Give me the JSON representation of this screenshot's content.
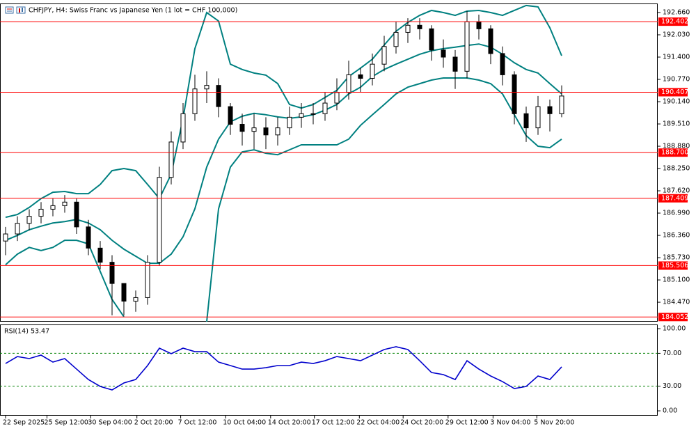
{
  "chart_data": [
    {
      "type": "candlestick",
      "title": "CHFJPY, H4:  Swiss Franc vs Japanese Yen (1 lot = CHF 100,000)",
      "open": [
        186.2,
        186.4,
        186.7,
        186.9,
        187.1,
        187.2,
        187.3,
        186.6,
        186.0,
        185.6,
        185.0,
        184.5,
        184.6,
        185.6,
        188.0,
        189.0,
        189.8,
        190.5,
        190.6,
        190.0,
        189.5,
        189.3,
        189.4,
        189.2,
        189.4,
        189.7,
        189.8,
        189.8,
        190.1,
        190.4,
        190.9,
        190.8,
        191.2,
        191.7,
        192.1,
        192.3,
        192.2,
        191.6,
        191.4,
        191.0,
        192.4,
        192.2,
        191.5,
        190.9,
        189.8,
        189.4,
        190.0,
        189.8
      ],
      "high": [
        186.6,
        186.9,
        187.1,
        187.3,
        187.4,
        187.5,
        187.4,
        186.8,
        186.2,
        185.8,
        185.0,
        184.8,
        185.8,
        188.3,
        189.3,
        190.1,
        190.9,
        191.0,
        190.8,
        190.1,
        189.8,
        189.8,
        189.7,
        189.7,
        190.0,
        190.1,
        190.1,
        190.4,
        190.8,
        191.3,
        191.1,
        191.5,
        192.0,
        192.4,
        192.5,
        192.5,
        192.3,
        191.9,
        191.6,
        192.7,
        192.6,
        192.3,
        191.7,
        191.0,
        190.0,
        190.3,
        190.2,
        190.6
      ],
      "low": [
        185.8,
        186.2,
        186.5,
        186.7,
        186.9,
        187.0,
        186.4,
        185.8,
        185.4,
        184.1,
        184.1,
        184.2,
        184.4,
        185.5,
        187.8,
        188.8,
        189.6,
        190.1,
        189.7,
        189.2,
        188.9,
        188.8,
        188.8,
        188.9,
        189.2,
        189.4,
        189.5,
        189.6,
        189.9,
        190.2,
        190.4,
        190.6,
        191.0,
        191.5,
        191.8,
        191.9,
        191.3,
        191.1,
        190.5,
        190.8,
        191.9,
        191.2,
        190.6,
        189.5,
        189.0,
        189.2,
        189.3,
        189.7
      ],
      "close": [
        186.4,
        186.7,
        186.9,
        187.1,
        187.2,
        187.3,
        186.6,
        186.0,
        185.6,
        185.0,
        184.5,
        184.6,
        185.6,
        188.0,
        189.0,
        189.8,
        190.5,
        190.6,
        190.0,
        189.5,
        189.3,
        189.4,
        189.2,
        189.4,
        189.7,
        189.8,
        189.8,
        190.1,
        190.4,
        190.9,
        190.8,
        191.2,
        191.7,
        192.1,
        192.3,
        192.2,
        191.6,
        191.4,
        191.0,
        192.4,
        192.2,
        191.5,
        190.9,
        189.8,
        189.4,
        190.0,
        189.8,
        190.3
      ],
      "up_color": "#ffffff",
      "down_color": "#000000",
      "outline_color": "#000000",
      "bands": {
        "color": "#008080",
        "upper": [
          186.87,
          186.95,
          187.15,
          187.4,
          187.58,
          187.6,
          187.54,
          187.54,
          187.8,
          188.19,
          188.25,
          188.19,
          187.8,
          187.4,
          188.09,
          189.67,
          191.64,
          192.66,
          192.42,
          191.2,
          191.05,
          190.95,
          190.89,
          190.65,
          190.06,
          189.96,
          190.06,
          190.26,
          190.46,
          190.85,
          191.09,
          191.34,
          191.74,
          192.13,
          192.38,
          192.58,
          192.72,
          192.66,
          192.58,
          192.7,
          192.72,
          192.66,
          192.58,
          192.72,
          192.86,
          192.82,
          192.23,
          191.44
        ],
        "middle": [
          186.22,
          186.36,
          186.52,
          186.62,
          186.71,
          186.75,
          186.81,
          186.71,
          186.52,
          186.22,
          185.97,
          185.77,
          185.57,
          185.57,
          185.83,
          186.32,
          187.11,
          188.29,
          189.08,
          189.57,
          189.73,
          189.81,
          189.77,
          189.71,
          189.67,
          189.71,
          189.77,
          189.9,
          190.06,
          190.36,
          190.55,
          190.85,
          191.05,
          191.2,
          191.34,
          191.48,
          191.58,
          191.64,
          191.68,
          191.73,
          191.77,
          191.68,
          191.48,
          191.24,
          191.05,
          190.95,
          190.65,
          190.36
        ],
        "lower": [
          185.53,
          185.83,
          186.02,
          185.93,
          186.02,
          186.22,
          186.22,
          186.12,
          185.34,
          184.55,
          184.06,
          null,
          null,
          null,
          null,
          null,
          null,
          183.92,
          187.11,
          188.29,
          188.72,
          188.78,
          188.68,
          188.64,
          188.78,
          188.92,
          188.92,
          188.92,
          188.92,
          189.08,
          189.47,
          189.77,
          190.06,
          190.36,
          190.55,
          190.65,
          190.75,
          190.81,
          190.81,
          190.81,
          190.75,
          190.65,
          190.36,
          189.77,
          189.18,
          188.88,
          188.84,
          189.08
        ]
      },
      "levels": [
        192.402,
        190.407,
        {
          "value": 188.7,
          "label": "188.700"
        },
        187.409,
        185.506,
        184.052
      ],
      "level_color": "#ff0000",
      "ylim": [
        183.92,
        192.916
      ],
      "yticks": [
        {
          "value": 192.66,
          "label": "192.660"
        },
        {
          "value": 192.03,
          "label": "192.030"
        },
        {
          "value": 191.4,
          "label": "191.400"
        },
        {
          "value": 190.77,
          "label": "190.770"
        },
        {
          "value": 190.14,
          "label": "190.140"
        },
        {
          "value": 189.51,
          "label": "189.510"
        },
        {
          "value": 188.88,
          "label": "188.880"
        },
        {
          "value": 188.25,
          "label": "188.250"
        },
        {
          "value": 187.62,
          "label": "187.620"
        },
        {
          "value": 186.99,
          "label": "186.990"
        },
        {
          "value": 186.36,
          "label": "186.360"
        },
        {
          "value": 185.73,
          "label": "185.730"
        },
        {
          "value": 185.1,
          "label": "185.100"
        },
        {
          "value": 184.47,
          "label": "184.470"
        }
      ]
    },
    {
      "type": "line",
      "title": "RSI(14) 53.47",
      "values": [
        57.6,
        66.1,
        63.6,
        67.8,
        59.3,
        63.6,
        50.8,
        38.1,
        29.7,
        25.4,
        33.9,
        38.1,
        55.1,
        76.3,
        69.5,
        76.3,
        72.0,
        72.0,
        59.3,
        55.1,
        50.8,
        50.8,
        52.5,
        55.1,
        55.1,
        59.3,
        57.6,
        61.0,
        66.1,
        63.6,
        61.0,
        67.8,
        74.6,
        78.0,
        74.6,
        61.0,
        46.6,
        44.1,
        38.1,
        61.0,
        50.8,
        42.4,
        35.6,
        27.1,
        29.7,
        42.4,
        38.1,
        53.47
      ],
      "color": "#0000cc",
      "levels": [
        70,
        30
      ],
      "level_color": "#008000",
      "ylim": [
        -5.9,
        105.1
      ],
      "yticks": [
        {
          "value": 100,
          "label": "100.00"
        },
        {
          "value": 70,
          "label": "70.00"
        },
        {
          "value": 30,
          "label": "30.00"
        },
        {
          "value": 0,
          "label": "0.00"
        }
      ],
      "xticks": [
        {
          "value": 0,
          "label": "22 Sep 2025"
        },
        {
          "value": 3.5,
          "label": "25 Sep 12:00"
        },
        {
          "value": 7.2,
          "label": "30 Sep 04:00"
        },
        {
          "value": 11.1,
          "label": "2 Oct 20:00"
        },
        {
          "value": 14.8,
          "label": "7 Oct 12:00"
        },
        {
          "value": 18.6,
          "label": "10 Oct 04:00"
        },
        {
          "value": 22.4,
          "label": "14 Oct 20:00"
        },
        {
          "value": 26.1,
          "label": "17 Oct 12:00"
        },
        {
          "value": 29.9,
          "label": "22 Oct 04:00"
        },
        {
          "value": 33.6,
          "label": "24 Oct 20:00"
        },
        {
          "value": 37.4,
          "label": "29 Oct 12:00"
        },
        {
          "value": 41.2,
          "label": "3 Nov 04:00"
        },
        {
          "value": 44.9,
          "label": "5 Nov 20:00"
        }
      ]
    }
  ]
}
